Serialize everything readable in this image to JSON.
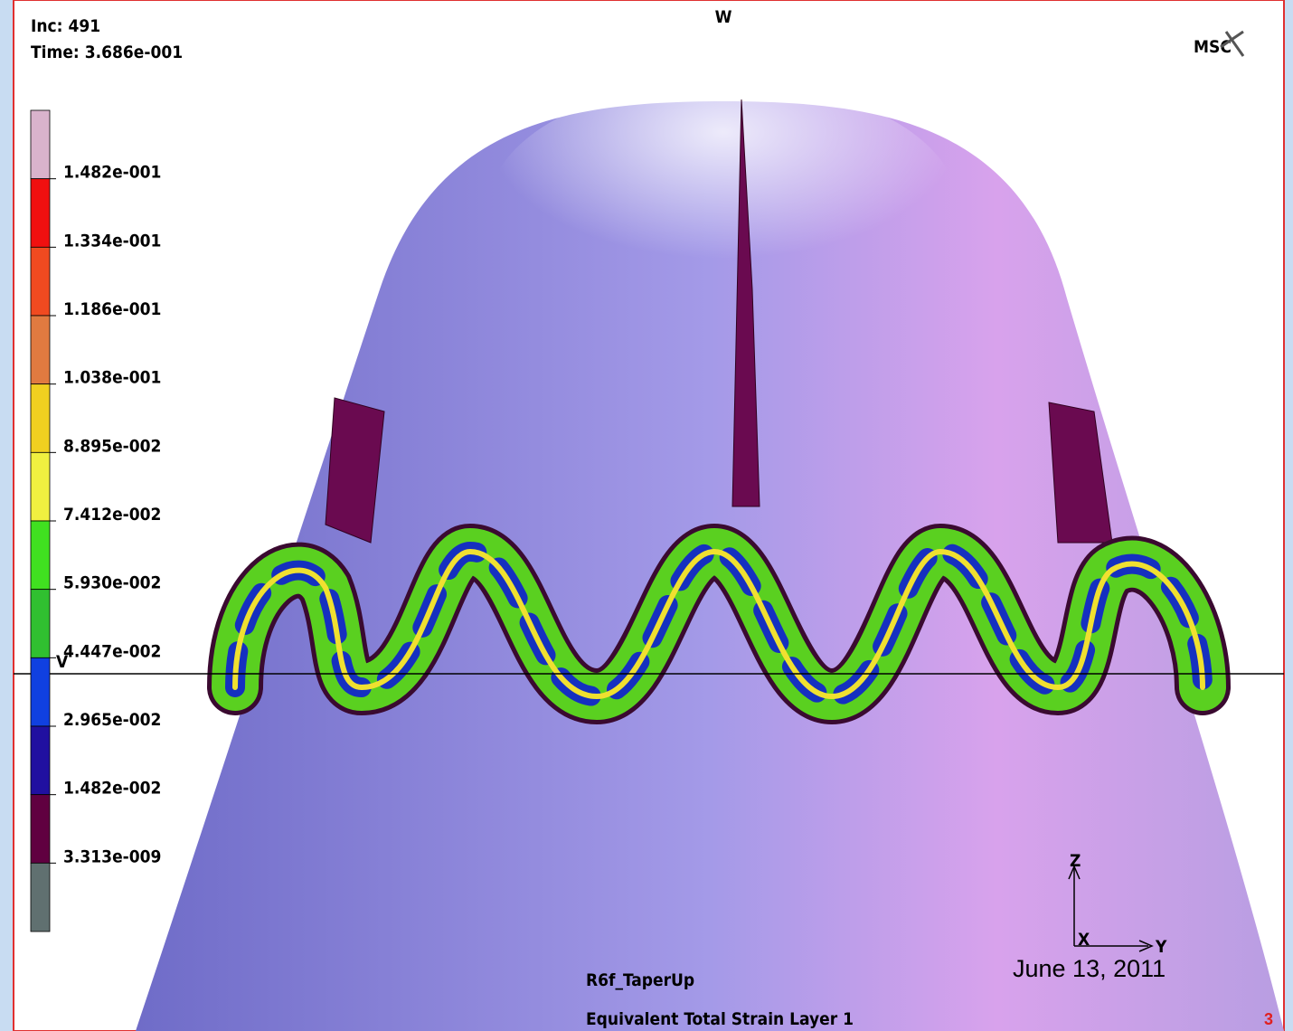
{
  "header": {
    "increment": "Inc:  491",
    "time": "Time:  3.686e-001",
    "view_label": "W",
    "logo": "MSC"
  },
  "legend": {
    "labels": [
      "1.482e-001",
      "1.334e-001",
      "1.186e-001",
      "1.038e-001",
      "8.895e-002",
      "7.412e-002",
      "5.930e-002",
      "4.447e-002",
      "2.965e-002",
      "1.482e-002",
      "3.313e-009"
    ],
    "colors": [
      "#d9b3cc",
      "#f01010",
      "#f04a20",
      "#e07a40",
      "#f0d020",
      "#f0f040",
      "#40e020",
      "#30c030",
      "#1040e0",
      "#2010a0",
      "#600040",
      "#607070"
    ]
  },
  "axes": {
    "v": "V",
    "z": "Z",
    "x": "X",
    "y": "Y"
  },
  "footer": {
    "model": "R6f_TaperUp",
    "result": "Equivalent Total Strain Layer 1",
    "date": "June 13, 2011",
    "page": "3"
  }
}
